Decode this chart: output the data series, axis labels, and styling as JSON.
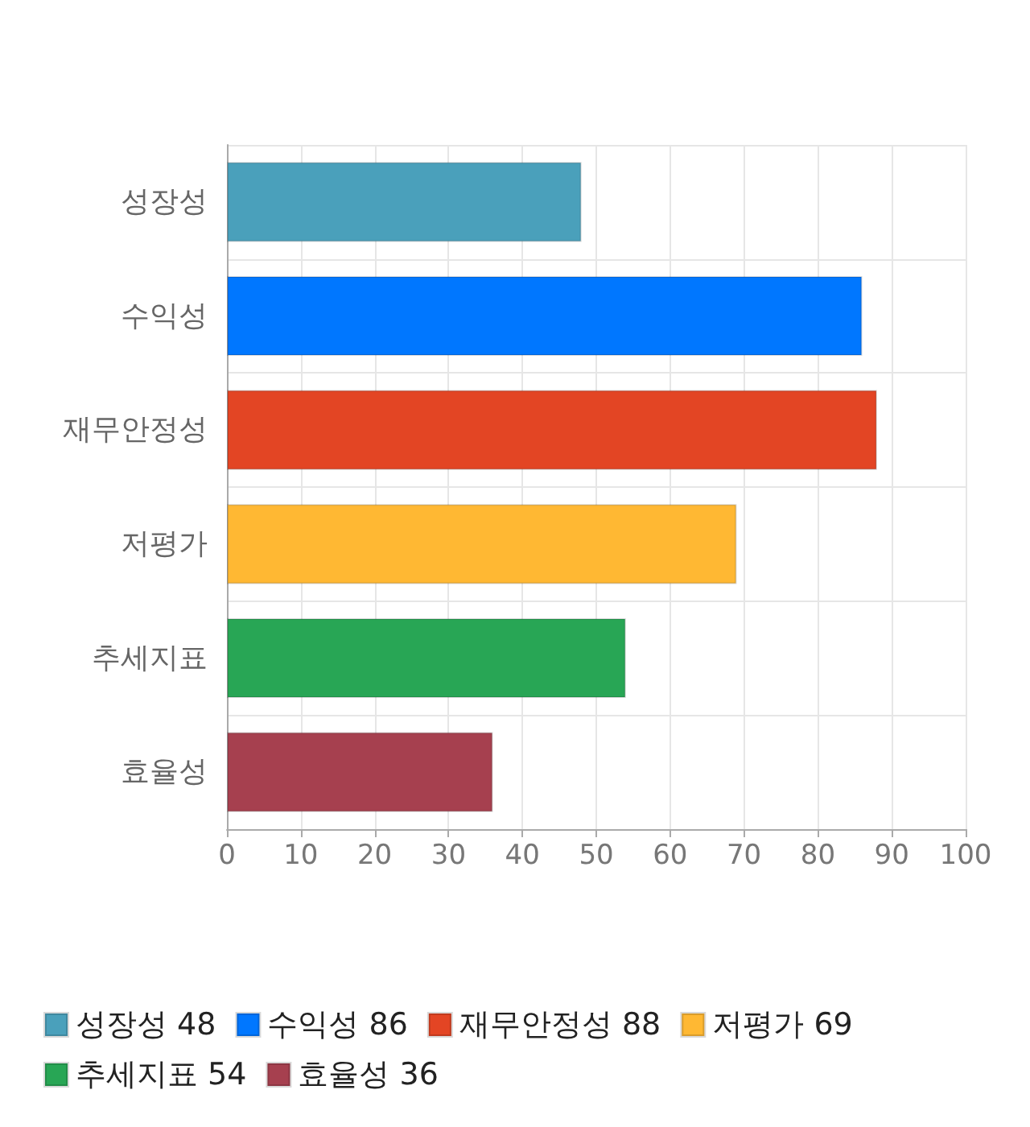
{
  "chart_data": {
    "type": "bar",
    "orientation": "horizontal",
    "stacked": true,
    "categories": [
      "성장성",
      "수익성",
      "재무안정성",
      "저평가",
      "추세지표",
      "효율성"
    ],
    "series": [
      {
        "name": "성장성 48",
        "color": "#4aa0bb",
        "values": [
          48,
          null,
          null,
          null,
          null,
          null
        ]
      },
      {
        "name": "수익성 86",
        "color": "#0077ff",
        "values": [
          null,
          86,
          null,
          null,
          null,
          null
        ]
      },
      {
        "name": "재무안정성 88",
        "color": "#e34524",
        "values": [
          null,
          null,
          88,
          null,
          null,
          null
        ]
      },
      {
        "name": "저평가 69",
        "color": "#ffb833",
        "values": [
          null,
          null,
          null,
          69,
          null,
          null
        ]
      },
      {
        "name": "추세지표 54",
        "color": "#28a655",
        "values": [
          null,
          null,
          null,
          null,
          54,
          null
        ]
      },
      {
        "name": "효율성 36",
        "color": "#a6404f",
        "values": [
          null,
          null,
          null,
          null,
          null,
          36
        ]
      }
    ],
    "xlim": [
      0,
      100
    ],
    "xticks": [
      0,
      10,
      20,
      30,
      40,
      50,
      60,
      70,
      80,
      90,
      100
    ],
    "grid": true,
    "legend": "bottom"
  }
}
